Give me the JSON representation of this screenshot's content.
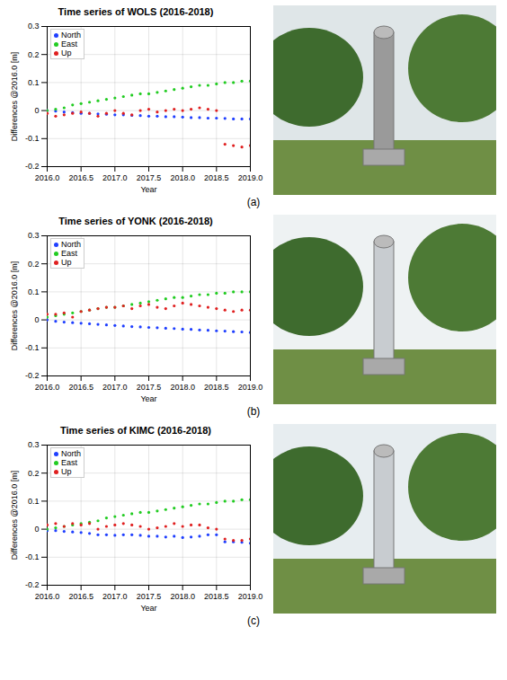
{
  "chart_data": [
    {
      "type": "scatter",
      "title": "Time series of WOLS (2016-2018)",
      "label": "(a)",
      "x_label": "Year",
      "y_label": "Differences @2016.0 [m]",
      "x": [
        2016,
        2016.125,
        2016.25,
        2016.375,
        2016.5,
        2016.625,
        2016.75,
        2016.875,
        2017,
        2017.125,
        2017.25,
        2017.375,
        2017.5,
        2017.625,
        2017.75,
        2017.875,
        2018,
        2018.125,
        2018.25,
        2018.375,
        2018.5,
        2018.625,
        2018.75,
        2018.875,
        2019
      ],
      "series": [
        {
          "name": "North",
          "color": "#1f3fff",
          "values": [
            0,
            -0.002,
            -0.005,
            -0.007,
            -0.01,
            -0.01,
            -0.012,
            -0.013,
            -0.015,
            -0.015,
            -0.017,
            -0.018,
            -0.02,
            -0.02,
            -0.022,
            -0.022,
            -0.023,
            -0.025,
            -0.025,
            -0.027,
            -0.027,
            -0.028,
            -0.03,
            -0.03,
            -0.03
          ]
        },
        {
          "name": "East",
          "color": "#22cc22",
          "values": [
            0,
            0.005,
            0.01,
            0.02,
            0.025,
            0.03,
            0.035,
            0.04,
            0.045,
            0.05,
            0.055,
            0.06,
            0.06,
            0.065,
            0.07,
            0.075,
            0.08,
            0.085,
            0.09,
            0.09,
            0.095,
            0.1,
            0.1,
            0.105,
            0.105
          ]
        },
        {
          "name": "Up",
          "color": "#e02020",
          "values": [
            -0.01,
            -0.02,
            -0.015,
            -0.01,
            -0.005,
            -0.01,
            -0.02,
            -0.01,
            0,
            -0.01,
            -0.015,
            0,
            0.005,
            -0.005,
            0,
            0.005,
            0,
            0.005,
            0.01,
            0.005,
            0,
            -0.12,
            -0.125,
            -0.13,
            -0.125
          ]
        }
      ],
      "marker": "dot",
      "xlim": [
        2016,
        2019
      ],
      "xticks": [
        {
          "value": 2016,
          "label": "2016.0"
        },
        {
          "value": 2016.5,
          "label": "2016.5"
        },
        {
          "value": 2017,
          "label": "2017.0"
        },
        {
          "value": 2017.5,
          "label": "2017.5"
        },
        {
          "value": 2018,
          "label": "2018.0"
        },
        {
          "value": 2018.5,
          "label": "2018.5"
        },
        {
          "value": 2019,
          "label": "2019.0"
        }
      ],
      "ylim": [
        -0.2,
        0.3
      ],
      "yticks": [
        -0.2,
        -0.1,
        0,
        0.1,
        0.2,
        0.3
      ],
      "grid": true,
      "legend": "top-left"
    },
    {
      "type": "scatter",
      "title": "Time series of YONK (2016-2018)",
      "label": "(b)",
      "x_label": "Year",
      "y_label": "Differences @2016.0 [m]",
      "x": [
        2016,
        2016.125,
        2016.25,
        2016.375,
        2016.5,
        2016.625,
        2016.75,
        2016.875,
        2017,
        2017.125,
        2017.25,
        2017.375,
        2017.5,
        2017.625,
        2017.75,
        2017.875,
        2018,
        2018.125,
        2018.25,
        2018.375,
        2018.5,
        2018.625,
        2018.75,
        2018.875,
        2019
      ],
      "series": [
        {
          "name": "North",
          "color": "#1f3fff",
          "values": [
            0,
            -0.005,
            -0.008,
            -0.01,
            -0.012,
            -0.014,
            -0.016,
            -0.018,
            -0.02,
            -0.022,
            -0.024,
            -0.025,
            -0.027,
            -0.028,
            -0.03,
            -0.031,
            -0.033,
            -0.034,
            -0.036,
            -0.037,
            -0.039,
            -0.04,
            -0.042,
            -0.043,
            -0.045
          ]
        },
        {
          "name": "East",
          "color": "#22cc22",
          "values": [
            0.01,
            0.015,
            0.02,
            0.025,
            0.03,
            0.035,
            0.04,
            0.045,
            0.045,
            0.05,
            0.055,
            0.06,
            0.065,
            0.07,
            0.075,
            0.08,
            0.08,
            0.085,
            0.09,
            0.09,
            0.095,
            0.095,
            0.1,
            0.1,
            0.1
          ]
        },
        {
          "name": "Up",
          "color": "#e02020",
          "values": [
            0.02,
            0.02,
            0.025,
            0.01,
            0.03,
            0.035,
            0.04,
            0.045,
            0.045,
            0.05,
            0.04,
            0.05,
            0.055,
            0.045,
            0.04,
            0.05,
            0.06,
            0.055,
            0.05,
            0.045,
            0.04,
            0.035,
            0.03,
            0.035,
            0.035
          ]
        }
      ],
      "marker": "dot",
      "xlim": [
        2016,
        2019
      ],
      "xticks": [
        {
          "value": 2016,
          "label": "2016.0"
        },
        {
          "value": 2016.5,
          "label": "2016.5"
        },
        {
          "value": 2017,
          "label": "2017.0"
        },
        {
          "value": 2017.5,
          "label": "2017.5"
        },
        {
          "value": 2018,
          "label": "2018.0"
        },
        {
          "value": 2018.5,
          "label": "2018.5"
        },
        {
          "value": 2019,
          "label": "2019.0"
        }
      ],
      "ylim": [
        -0.2,
        0.3
      ],
      "yticks": [
        -0.2,
        -0.1,
        0,
        0.1,
        0.2,
        0.3
      ],
      "grid": true,
      "legend": "top-left"
    },
    {
      "type": "scatter",
      "title": "Time series of KIMC (2016-2018)",
      "label": "(c)",
      "x_label": "Year",
      "y_label": "Differences @2016.0 [m]",
      "x": [
        2016,
        2016.125,
        2016.25,
        2016.375,
        2016.5,
        2016.625,
        2016.75,
        2016.875,
        2017,
        2017.125,
        2017.25,
        2017.375,
        2017.5,
        2017.625,
        2017.75,
        2017.875,
        2018,
        2018.125,
        2018.25,
        2018.375,
        2018.5,
        2018.625,
        2018.75,
        2018.875,
        2019
      ],
      "series": [
        {
          "name": "North",
          "color": "#1f3fff",
          "values": [
            -0.005,
            -0.005,
            -0.008,
            -0.01,
            -0.012,
            -0.015,
            -0.02,
            -0.02,
            -0.022,
            -0.02,
            -0.02,
            -0.022,
            -0.025,
            -0.025,
            -0.028,
            -0.025,
            -0.03,
            -0.028,
            -0.025,
            -0.02,
            -0.02,
            -0.045,
            -0.045,
            -0.047,
            -0.05
          ]
        },
        {
          "name": "East",
          "color": "#22cc22",
          "values": [
            0,
            0.005,
            0.01,
            0.015,
            0.02,
            0.025,
            0.03,
            0.04,
            0.045,
            0.05,
            0.055,
            0.06,
            0.06,
            0.065,
            0.07,
            0.075,
            0.08,
            0.085,
            0.09,
            0.09,
            0.095,
            0.1,
            0.1,
            0.105,
            0.105
          ]
        },
        {
          "name": "Up",
          "color": "#e02020",
          "values": [
            0.015,
            0.02,
            0.01,
            0.02,
            0.015,
            0.02,
            0,
            0.01,
            0.015,
            0.02,
            0.015,
            0.01,
            0,
            0.005,
            0.01,
            0.02,
            0.01,
            0.015,
            0.015,
            0.005,
            0,
            -0.035,
            -0.04,
            -0.04,
            -0.035
          ]
        }
      ],
      "marker": "dot",
      "xlim": [
        2016,
        2019
      ],
      "xticks": [
        {
          "value": 2016,
          "label": "2016.0"
        },
        {
          "value": 2016.5,
          "label": "2016.5"
        },
        {
          "value": 2017,
          "label": "2017.0"
        },
        {
          "value": 2017.5,
          "label": "2017.5"
        },
        {
          "value": 2018,
          "label": "2018.0"
        },
        {
          "value": 2018.5,
          "label": "2018.5"
        },
        {
          "value": 2019,
          "label": "2019.0"
        }
      ],
      "ylim": [
        -0.2,
        0.3
      ],
      "yticks": [
        -0.2,
        -0.1,
        0,
        0.1,
        0.2,
        0.3
      ],
      "grid": true,
      "legend": "top-left"
    }
  ]
}
